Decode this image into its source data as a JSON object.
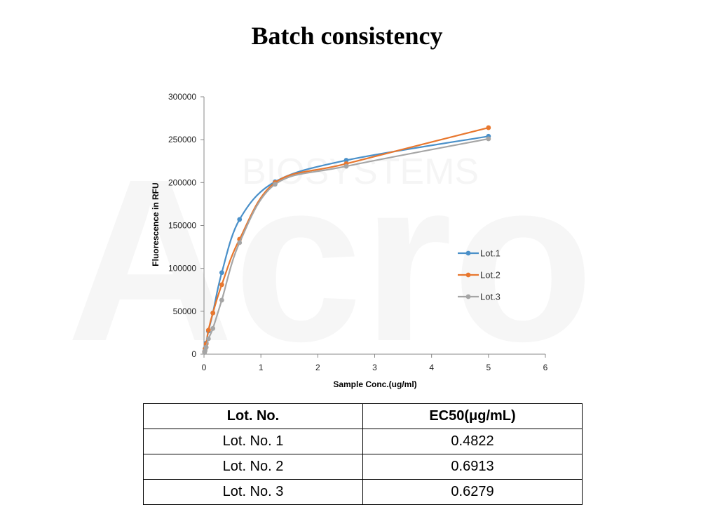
{
  "title": "Batch consistency",
  "watermark": {
    "brand": "Acro",
    "sub": "BIOSYSTEMS"
  },
  "chart_data": {
    "type": "line",
    "xlabel": "Sample Conc.(ug/ml)",
    "ylabel": "Fluorescence in RFU",
    "xlim": [
      0,
      6
    ],
    "ylim": [
      0,
      300000
    ],
    "x_ticks": [
      0,
      1,
      2,
      3,
      4,
      5,
      6
    ],
    "y_ticks": [
      0,
      50000,
      100000,
      150000,
      200000,
      250000,
      300000
    ],
    "grid": false,
    "legend": "right",
    "series": [
      {
        "name": "Lot.1",
        "color": "#4a90c9",
        "x": [
          0.0098,
          0.0195,
          0.039,
          0.078,
          0.156,
          0.3125,
          0.625,
          1.25,
          2.5,
          5
        ],
        "y": [
          3000,
          6500,
          13000,
          27000,
          48000,
          95000,
          157000,
          201000,
          226000,
          254000
        ]
      },
      {
        "name": "Lot.2",
        "color": "#e8772e",
        "x": [
          0.0098,
          0.0195,
          0.039,
          0.078,
          0.156,
          0.3125,
          0.625,
          1.25,
          2.5,
          5
        ],
        "y": [
          2500,
          6000,
          12000,
          28000,
          48000,
          81000,
          134000,
          200000,
          222000,
          264000
        ]
      },
      {
        "name": "Lot.3",
        "color": "#a5a5a5",
        "x": [
          0.0098,
          0.0195,
          0.039,
          0.078,
          0.156,
          0.3125,
          0.625,
          1.25,
          2.5,
          5
        ],
        "y": [
          2000,
          4000,
          8000,
          18000,
          30000,
          63000,
          130000,
          198000,
          219000,
          251000
        ]
      }
    ]
  },
  "table": {
    "headers": [
      "Lot. No.",
      "EC50(μg/mL)"
    ],
    "rows": [
      [
        "Lot. No. 1",
        "0.4822"
      ],
      [
        "Lot. No. 2",
        "0.6913"
      ],
      [
        "Lot. No. 3",
        "0.6279"
      ]
    ]
  }
}
